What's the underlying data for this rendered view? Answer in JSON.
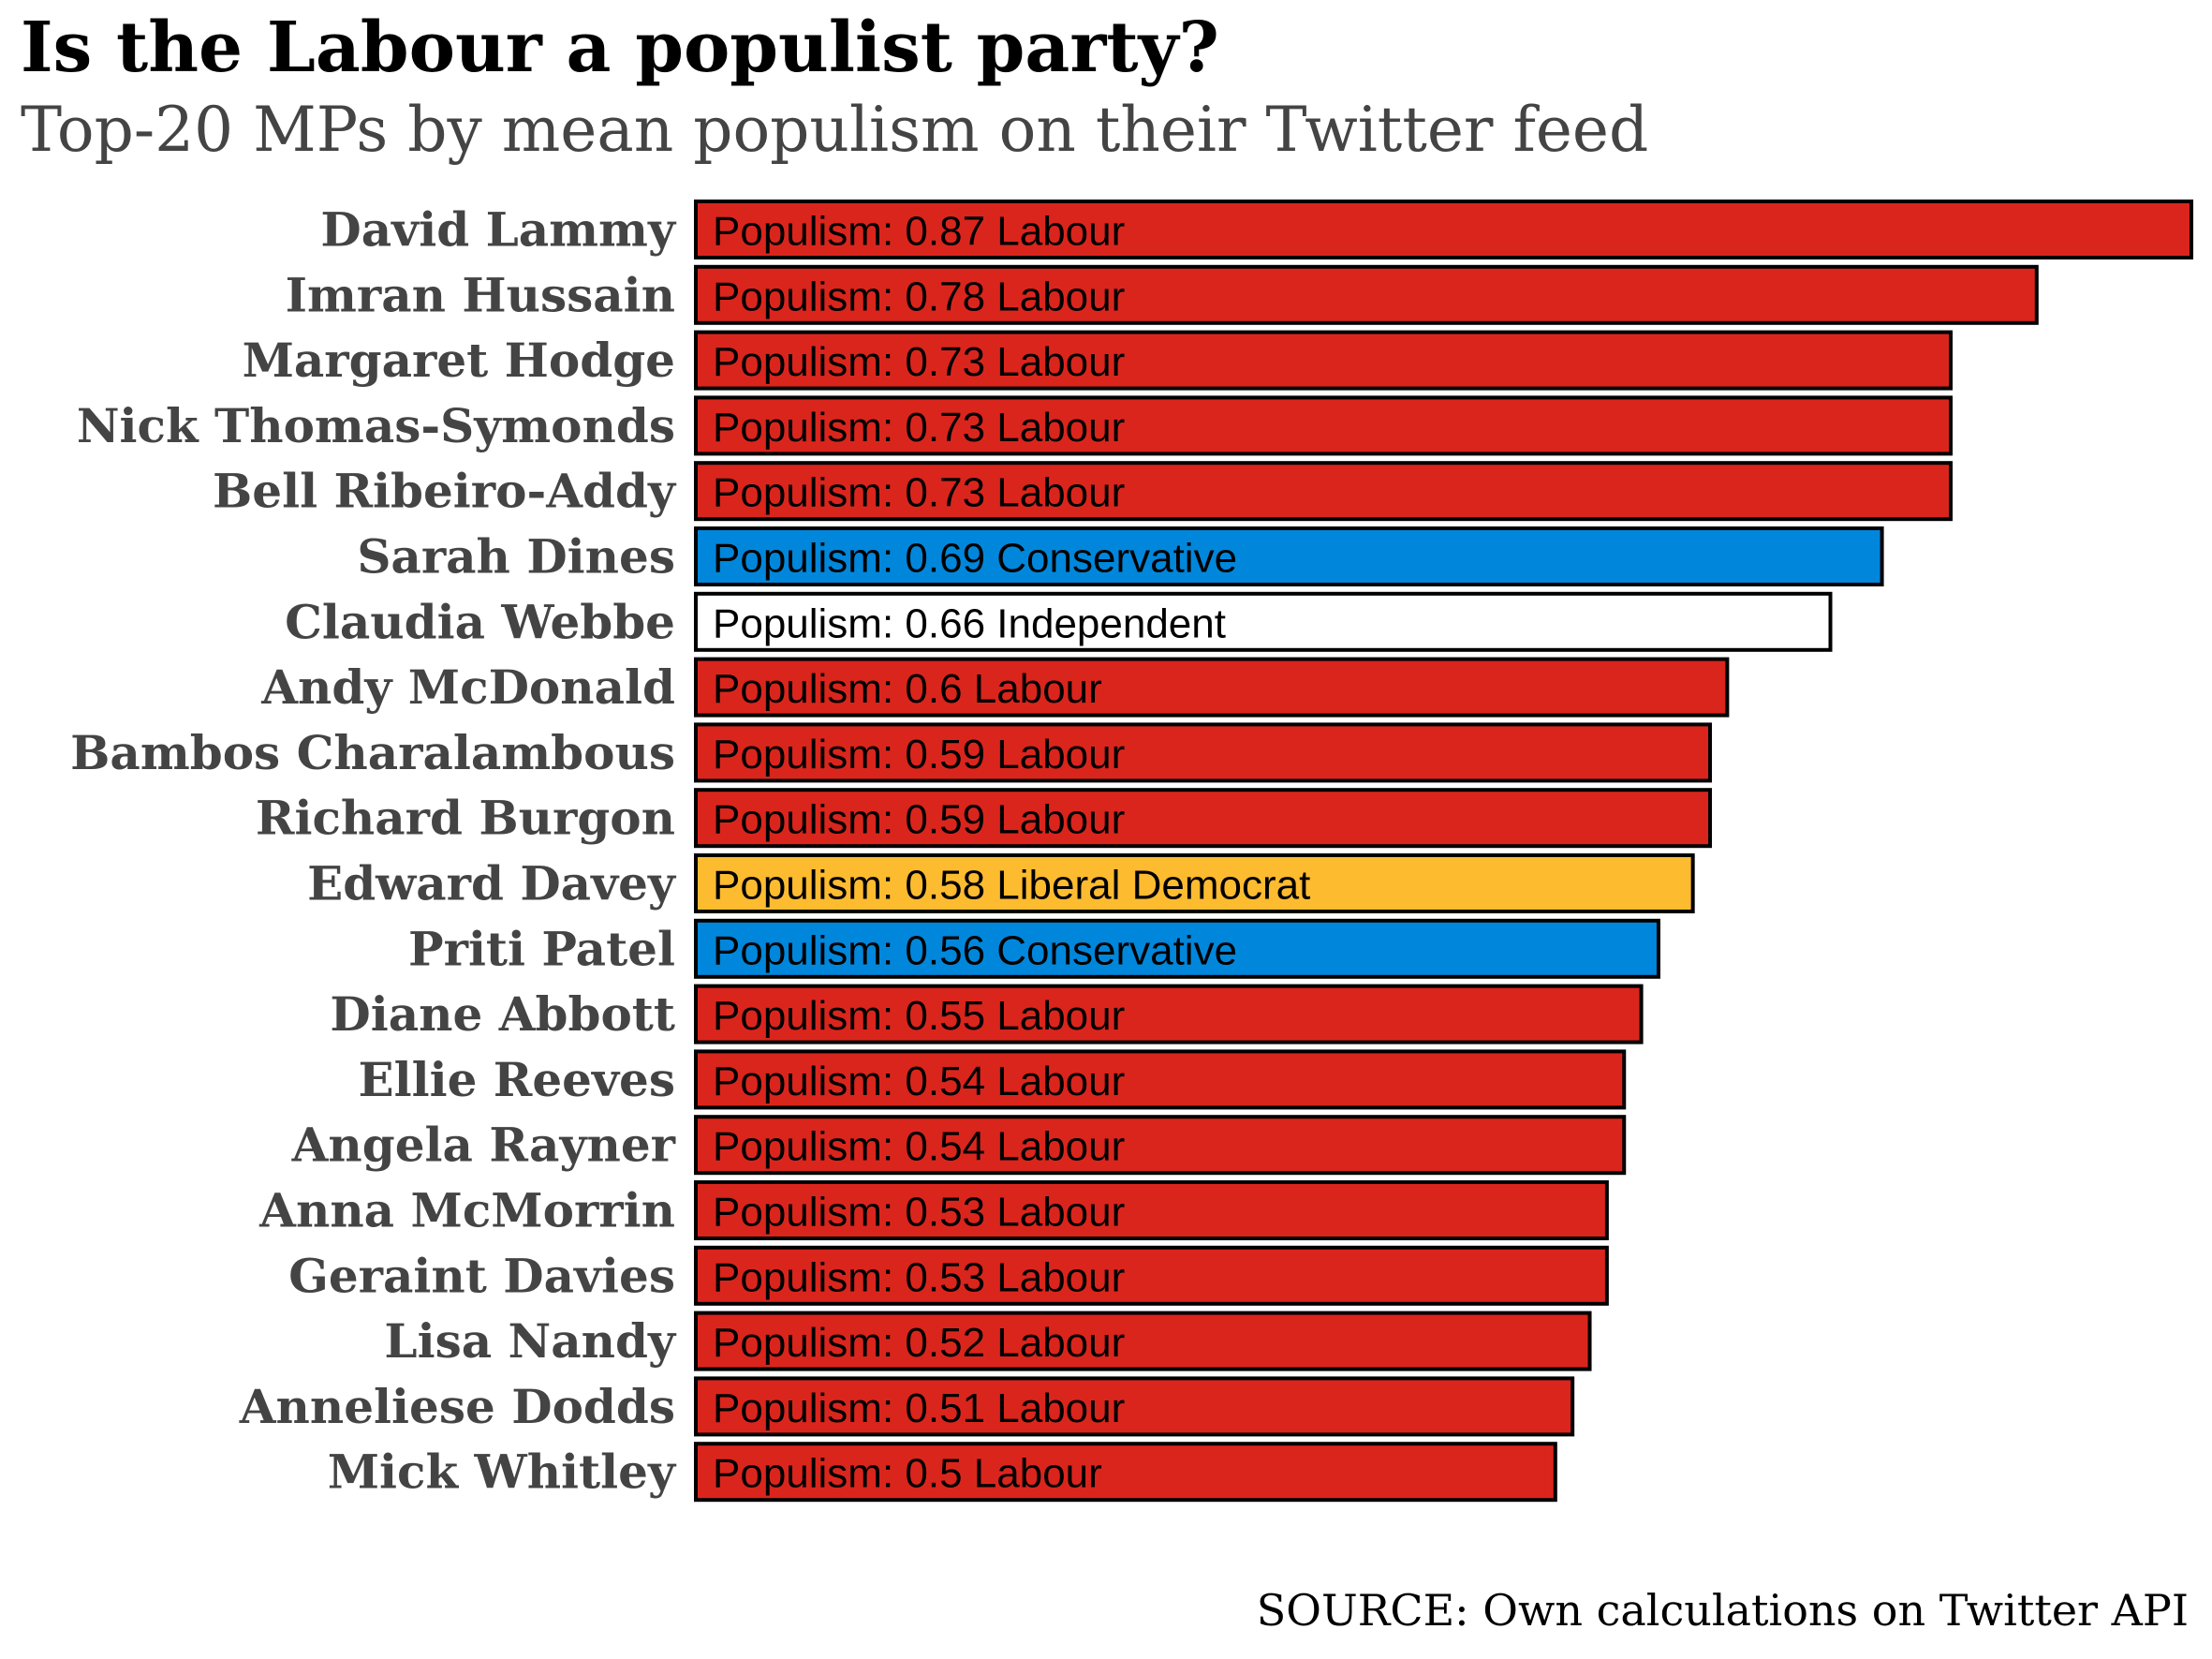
{
  "chart_data": {
    "type": "bar",
    "orientation": "horizontal",
    "title": "Is the Labour a populist party?",
    "subtitle": "Top-20 MPs by mean populism on their Twitter feed",
    "source": "SOURCE: Own calculations on Twitter API",
    "value_prefix": "Populism:",
    "xlim": [
      0,
      0.87
    ],
    "grid": false,
    "party_colors": {
      "Labour": "#DA251D",
      "Conservative": "#0087DC",
      "Independent": "#FFFFFF",
      "Liberal Democrat": "#FDBB30"
    },
    "categories": [
      "David Lammy",
      "Imran Hussain",
      "Margaret Hodge",
      "Nick Thomas-Symonds",
      "Bell Ribeiro-Addy",
      "Sarah Dines",
      "Claudia Webbe",
      "Andy McDonald",
      "Bambos Charalambous",
      "Richard Burgon",
      "Edward Davey",
      "Priti Patel",
      "Diane Abbott",
      "Ellie Reeves",
      "Angela Rayner",
      "Anna McMorrin",
      "Geraint Davies",
      "Lisa Nandy",
      "Anneliese Dodds",
      "Mick Whitley"
    ],
    "values": [
      0.87,
      0.78,
      0.73,
      0.73,
      0.73,
      0.69,
      0.66,
      0.6,
      0.59,
      0.59,
      0.58,
      0.56,
      0.55,
      0.54,
      0.54,
      0.53,
      0.53,
      0.52,
      0.51,
      0.5
    ],
    "labels": [
      "0.87",
      "0.78",
      "0.73",
      "0.73",
      "0.73",
      "0.69",
      "0.66",
      "0.6",
      "0.59",
      "0.59",
      "0.58",
      "0.56",
      "0.55",
      "0.54",
      "0.54",
      "0.53",
      "0.53",
      "0.52",
      "0.51",
      "0.5"
    ],
    "parties": [
      "Labour",
      "Labour",
      "Labour",
      "Labour",
      "Labour",
      "Conservative",
      "Independent",
      "Labour",
      "Labour",
      "Labour",
      "Liberal Democrat",
      "Conservative",
      "Labour",
      "Labour",
      "Labour",
      "Labour",
      "Labour",
      "Labour",
      "Labour",
      "Labour"
    ]
  }
}
